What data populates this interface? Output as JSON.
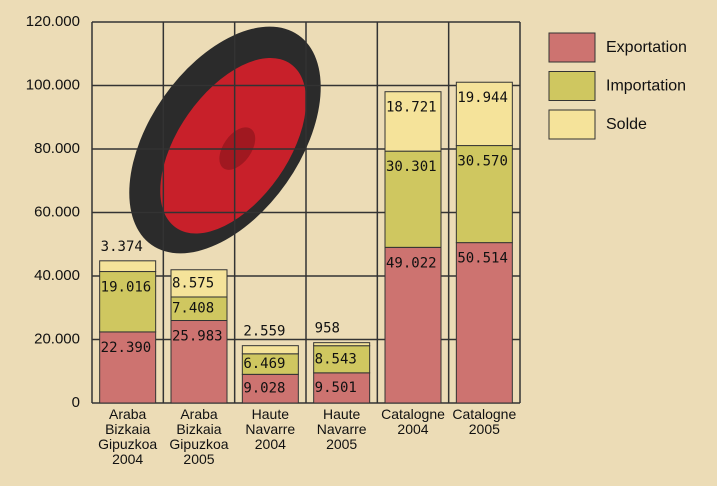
{
  "chart_data": {
    "type": "stacked-bar",
    "categories": [
      [
        "Araba",
        "Bizkaia",
        "Gipuzkoa",
        "2004"
      ],
      [
        "Araba",
        "Bizkaia",
        "Gipuzkoa",
        "2005"
      ],
      [
        "Haute",
        "Navarre",
        "2004"
      ],
      [
        "Haute",
        "Navarre",
        "2005"
      ],
      [
        "Catalogne",
        "2004"
      ],
      [
        "Catalogne",
        "2005"
      ]
    ],
    "series": [
      {
        "name": "Exportation",
        "color": "#cd7370",
        "values": [
          22390,
          25983,
          9028,
          9501,
          49022,
          50514
        ],
        "value_labels": [
          "22.390",
          "25.983",
          "9.028",
          "9.501",
          "49.022",
          "50.514"
        ]
      },
      {
        "name": "Importation",
        "color": "#cfc760",
        "values": [
          19016,
          7408,
          6469,
          8543,
          30301,
          30570
        ],
        "value_labels": [
          "19.016",
          "7.408",
          "6.469",
          "8.543",
          "30.301",
          "30.570"
        ]
      },
      {
        "name": "Solde",
        "color": "#f5e39a",
        "values": [
          3374,
          8575,
          2559,
          958,
          18721,
          19944
        ],
        "value_labels": [
          "3.374",
          "8.575",
          "2.559",
          "958",
          "18.721",
          "19.944"
        ]
      }
    ],
    "ylim": [
      0,
      120000
    ],
    "yticks": [
      0,
      {
        "value": 20000,
        "label": "20.000"
      },
      {
        "value": 40000,
        "label": "40.000"
      },
      {
        "value": 60000,
        "label": "60.000"
      },
      {
        "value": 80000,
        "label": "80.000"
      },
      {
        "value": 100000,
        "label": "100.000"
      },
      {
        "value": 120000,
        "label": "120.000"
      }
    ],
    "grid": true,
    "legend": "right"
  }
}
